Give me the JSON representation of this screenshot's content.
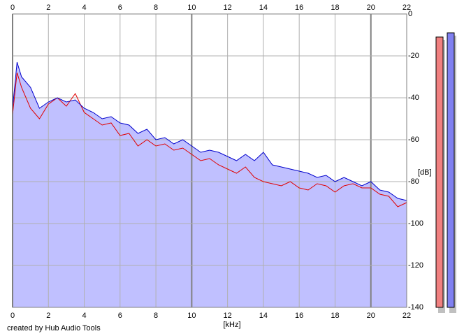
{
  "chart_data": {
    "type": "line",
    "x_label": "[kHz]",
    "y_label": "[dB]",
    "credit": "created by Hub Audio Tools",
    "x": [
      0,
      0.25,
      0.5,
      1,
      1.5,
      2,
      2.5,
      3,
      3.5,
      4,
      4.5,
      5,
      5.5,
      6,
      6.5,
      7,
      7.5,
      8,
      8.5,
      9,
      9.5,
      10,
      10.5,
      11,
      11.5,
      12,
      12.5,
      13,
      13.5,
      14,
      14.5,
      15,
      15.5,
      16,
      16.5,
      17,
      17.5,
      18,
      18.5,
      19,
      19.5,
      20,
      20.5,
      21,
      21.5,
      22
    ],
    "series": [
      {
        "color": "#e00000",
        "values": [
          -48,
          -28,
          -35,
          -45,
          -50,
          -43,
          -40,
          -44,
          -38,
          -47,
          -50,
          -53,
          -52,
          -58,
          -57,
          -63,
          -60,
          -63,
          -62,
          -65,
          -64,
          -67,
          -70,
          -69,
          -72,
          -74,
          -76,
          -73,
          -78,
          -80,
          -81,
          -82,
          -80,
          -83,
          -84,
          -81,
          -82,
          -85,
          -82,
          -81,
          -83,
          -83,
          -86,
          -87,
          -92,
          -90
        ]
      },
      {
        "color": "#0000cc",
        "fill": "#c0c0ff",
        "values": [
          -45,
          -23,
          -30,
          -35,
          -45,
          -42,
          -40,
          -42,
          -41,
          -45,
          -47,
          -50,
          -49,
          -52,
          -53,
          -57,
          -55,
          -60,
          -59,
          -62,
          -60,
          -63,
          -66,
          -65,
          -66,
          -68,
          -70,
          -67,
          -70,
          -66,
          -72,
          -73,
          -74,
          -75,
          -76,
          -78,
          -77,
          -80,
          -78,
          -80,
          -82,
          -80,
          -84,
          -85,
          -88,
          -89
        ]
      }
    ],
    "meters": [
      {
        "color": "#f08080",
        "value": -11
      },
      {
        "color": "#8080f0",
        "value": -9
      }
    ],
    "xlim": [
      0,
      22
    ],
    "xticks": [
      0,
      2,
      4,
      6,
      8,
      10,
      12,
      14,
      16,
      18,
      20,
      22
    ],
    "ylim": [
      -140,
      0
    ],
    "yticks": [
      0,
      -20,
      -40,
      -60,
      -80,
      -100,
      -120,
      -140
    ],
    "grid": true
  }
}
